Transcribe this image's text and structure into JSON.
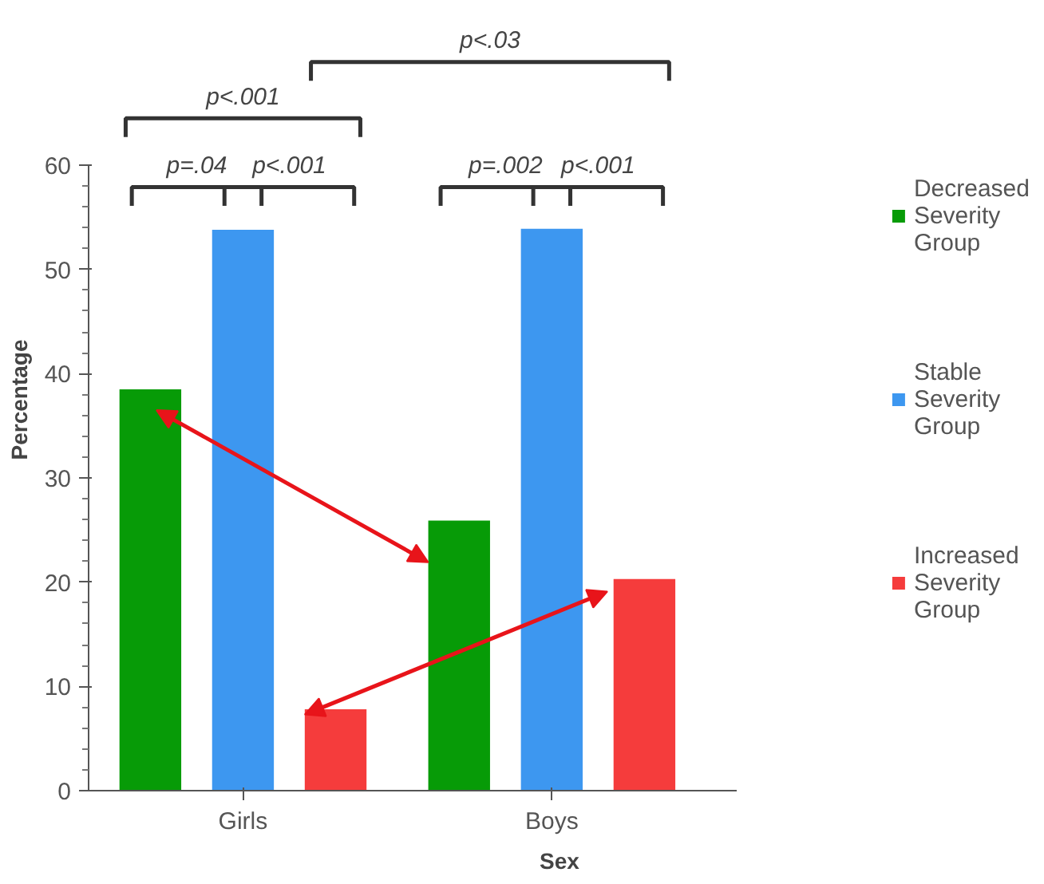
{
  "chart_data": {
    "type": "bar",
    "categories": [
      "Girls",
      "Boys"
    ],
    "xlabel": "Sex",
    "ylabel": "Percentage",
    "series": [
      {
        "name": "Decreased Severity Group",
        "color": "#079b07",
        "values": [
          38.5,
          25.9
        ]
      },
      {
        "name": "Stable Severity Group",
        "color": "#3d97f0",
        "values": [
          53.8,
          53.9
        ]
      },
      {
        "name": "Increased Severity Group",
        "color": "#f53c3c",
        "values": [
          7.8,
          20.3
        ]
      }
    ],
    "ylim": [
      0,
      60
    ],
    "yticks": [
      0,
      10,
      20,
      30,
      40,
      50,
      60
    ],
    "grid": false,
    "legend": "right",
    "annotations": [
      "p<.03",
      "p<.001",
      "p=.04",
      "p<.001",
      "p=.002",
      "p<.001"
    ]
  }
}
